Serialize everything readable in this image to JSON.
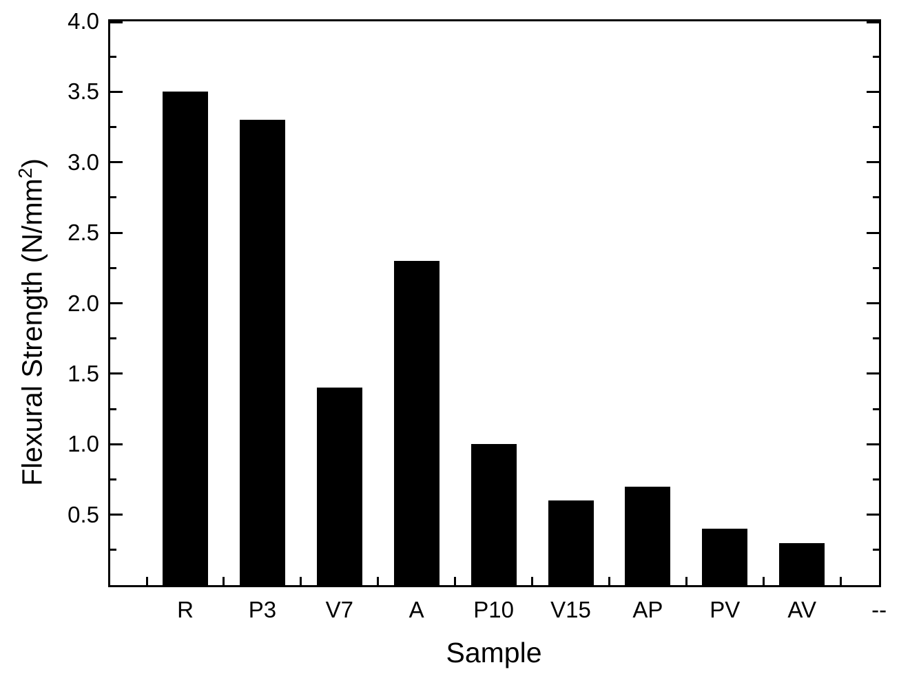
{
  "chart_data": {
    "type": "bar",
    "title": "",
    "categories": [
      "R",
      "P3",
      "V7",
      "A",
      "P10",
      "V15",
      "AP",
      "PV",
      "AV",
      "--"
    ],
    "values": [
      3.5,
      3.3,
      1.4,
      2.3,
      1.0,
      0.6,
      0.7,
      0.4,
      0.3,
      null
    ],
    "xlabel": "Sample",
    "ylabel": "Flexural Strength (N/mm²)",
    "ylabel_parts": {
      "pre": "Flexural Strength (N/mm",
      "sup": "2",
      "post": ")"
    },
    "ylim": [
      0,
      4.0
    ],
    "ytick_labels": [
      "0.5",
      "1.0",
      "1.5",
      "2.0",
      "2.5",
      "3.0",
      "3.5",
      "4.0"
    ],
    "ytick_major_values": [
      0.5,
      1.0,
      1.5,
      2.0,
      2.5,
      3.0,
      3.5,
      4.0
    ],
    "ytick_minor_step": 0.25,
    "bar_color": "#000000",
    "axis_color": "#000000",
    "background_color": "#ffffff",
    "grid": false,
    "legend": "none",
    "tick_direction": "in",
    "frame": "box"
  }
}
